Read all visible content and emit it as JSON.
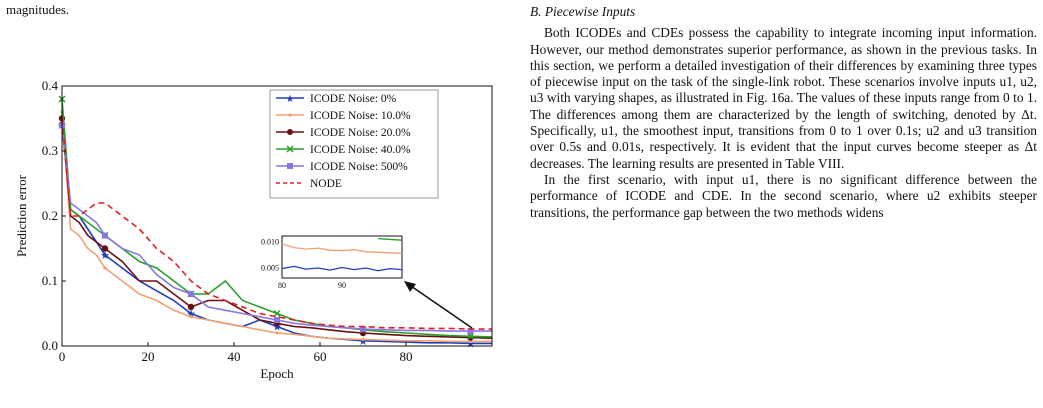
{
  "left_fragment": "magnitudes.",
  "section_heading": "B.  Piecewise Inputs",
  "paragraphs": [
    "Both ICODEs and CDEs possess the capability to integrate incoming input information. However, our method demonstrates superior performance, as shown in the previous tasks. In this section, we perform a detailed investigation of their differences by examining three types of piecewise input on the task of the single-link robot. These scenarios involve inputs u1, u2, u3 with varying shapes, as illustrated in Fig. 16a. The values of these inputs range from 0 to 1. The differences among them are characterized by the length of switching, denoted by Δt. Specifically, u1, the smoothest input, transitions from 0 to 1 over 0.1s; u2 and u3 transition over 0.5s and 0.01s, respectively. It is evident that the input curves become steeper as Δt decreases. The learning results are presented in Table VIII.",
    "In the first scenario, with input u1, there is no significant difference between the performance of ICODE and CDE. In the second scenario, where u2 exhibits steeper transitions, the performance gap between the two methods widens"
  ],
  "chart_data": {
    "type": "line",
    "xlabel": "Epoch",
    "ylabel": "Prediction error",
    "xlim": [
      0,
      100
    ],
    "ylim": [
      0,
      0.4
    ],
    "x_ticks": [
      "0",
      "20",
      "40",
      "60",
      "80"
    ],
    "y_ticks": [
      "0.0",
      "0.1",
      "0.2",
      "0.3",
      "0.4"
    ],
    "legend_position": "top-right",
    "series": [
      {
        "name": "ICODE Noise: 0%",
        "color": "#1f3fbf",
        "marker": "star",
        "dash": "",
        "x": [
          0,
          2,
          4,
          6,
          8,
          10,
          14,
          18,
          22,
          26,
          30,
          34,
          38,
          42,
          46,
          50,
          54,
          58,
          62,
          66,
          70,
          75,
          80,
          85,
          90,
          95,
          100
        ],
        "y": [
          0.34,
          0.21,
          0.2,
          0.18,
          0.16,
          0.14,
          0.12,
          0.1,
          0.085,
          0.07,
          0.05,
          0.04,
          0.035,
          0.03,
          0.04,
          0.03,
          0.02,
          0.015,
          0.012,
          0.01,
          0.008,
          0.007,
          0.006,
          0.005,
          0.005,
          0.004,
          0.004
        ]
      },
      {
        "name": "ICODE Noise: 10.0%",
        "color": "#f5a070",
        "marker": "dot",
        "dash": "",
        "x": [
          0,
          2,
          4,
          6,
          8,
          10,
          14,
          18,
          22,
          26,
          30,
          34,
          38,
          42,
          46,
          50,
          54,
          58,
          62,
          66,
          70,
          75,
          80,
          85,
          90,
          95,
          100
        ],
        "y": [
          0.36,
          0.18,
          0.17,
          0.15,
          0.14,
          0.12,
          0.1,
          0.08,
          0.07,
          0.055,
          0.045,
          0.04,
          0.035,
          0.03,
          0.025,
          0.02,
          0.018,
          0.015,
          0.012,
          0.011,
          0.01,
          0.009,
          0.008,
          0.008,
          0.007,
          0.007,
          0.007
        ]
      },
      {
        "name": "ICODE Noise: 20.0%",
        "color": "#6b0f0f",
        "marker": "circle",
        "dash": "",
        "x": [
          0,
          2,
          4,
          6,
          8,
          10,
          14,
          18,
          22,
          26,
          30,
          34,
          38,
          42,
          46,
          50,
          54,
          58,
          62,
          66,
          70,
          75,
          80,
          85,
          90,
          95,
          100
        ],
        "y": [
          0.35,
          0.2,
          0.19,
          0.17,
          0.16,
          0.15,
          0.13,
          0.1,
          0.1,
          0.08,
          0.06,
          0.07,
          0.07,
          0.055,
          0.04,
          0.035,
          0.03,
          0.028,
          0.025,
          0.022,
          0.02,
          0.018,
          0.016,
          0.015,
          0.014,
          0.013,
          0.012
        ]
      },
      {
        "name": "ICODE Noise: 40.0%",
        "color": "#2aa02a",
        "marker": "x",
        "dash": "",
        "x": [
          0,
          2,
          4,
          6,
          8,
          10,
          14,
          18,
          22,
          26,
          30,
          34,
          38,
          42,
          46,
          50,
          54,
          58,
          62,
          66,
          70,
          75,
          80,
          85,
          90,
          95,
          100
        ],
        "y": [
          0.38,
          0.21,
          0.2,
          0.19,
          0.18,
          0.17,
          0.15,
          0.13,
          0.12,
          0.1,
          0.08,
          0.08,
          0.1,
          0.07,
          0.06,
          0.05,
          0.04,
          0.035,
          0.03,
          0.028,
          0.025,
          0.022,
          0.02,
          0.018,
          0.016,
          0.015,
          0.014
        ]
      },
      {
        "name": "ICODE Noise: 500%",
        "color": "#8878e0",
        "marker": "square",
        "dash": "",
        "x": [
          0,
          2,
          4,
          6,
          8,
          10,
          14,
          18,
          22,
          26,
          30,
          34,
          38,
          42,
          46,
          50,
          54,
          58,
          62,
          66,
          70,
          75,
          80,
          85,
          90,
          95,
          100
        ],
        "y": [
          0.34,
          0.22,
          0.21,
          0.2,
          0.19,
          0.17,
          0.15,
          0.14,
          0.11,
          0.09,
          0.08,
          0.06,
          0.055,
          0.05,
          0.045,
          0.04,
          0.035,
          0.032,
          0.03,
          0.028,
          0.026,
          0.025,
          0.024,
          0.024,
          0.023,
          0.023,
          0.023
        ]
      },
      {
        "name": "NODE",
        "color": "#e02020",
        "marker": "none",
        "dash": "6,4",
        "x": [
          0,
          2,
          4,
          6,
          8,
          10,
          14,
          18,
          22,
          26,
          30,
          34,
          38,
          42,
          46,
          50,
          54,
          58,
          62,
          66,
          70,
          75,
          80,
          85,
          90,
          95,
          100
        ],
        "y": [
          0.35,
          0.2,
          0.2,
          0.21,
          0.22,
          0.22,
          0.2,
          0.18,
          0.15,
          0.13,
          0.1,
          0.08,
          0.07,
          0.06,
          0.05,
          0.045,
          0.04,
          0.035,
          0.032,
          0.03,
          0.03,
          0.028,
          0.028,
          0.027,
          0.027,
          0.026,
          0.026
        ]
      }
    ],
    "inset": {
      "xlim": [
        80,
        100
      ],
      "ylim": [
        0.003,
        0.011
      ],
      "x_ticks": [
        "80",
        "90"
      ],
      "y_ticks": [
        "0.005",
        "0.010"
      ]
    }
  }
}
